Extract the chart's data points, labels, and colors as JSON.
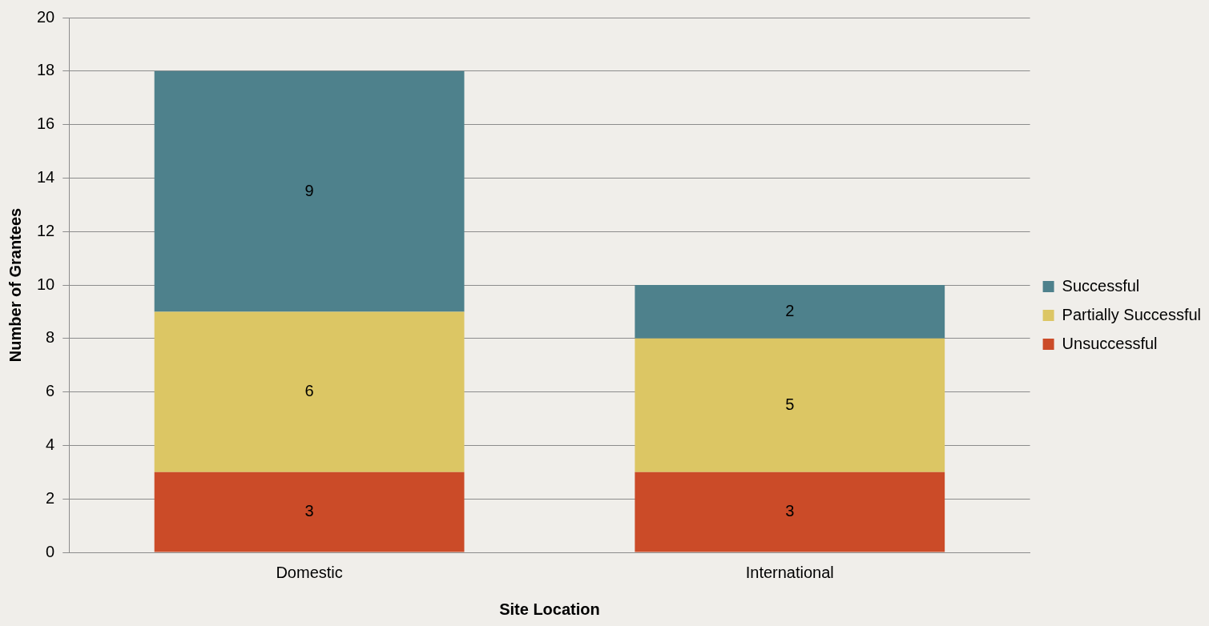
{
  "chart_data": {
    "type": "bar",
    "xlabel": "Site Location",
    "ylabel": "Number of Grantees",
    "categories": [
      "Domestic",
      "International"
    ],
    "series": [
      {
        "name": "Unsuccessful",
        "color": "#cb4b28",
        "values": [
          3,
          3
        ]
      },
      {
        "name": "Partially Successful",
        "color": "#dcc664",
        "values": [
          6,
          5
        ]
      },
      {
        "name": "Successful",
        "color": "#4e818c",
        "values": [
          9,
          2
        ]
      }
    ],
    "stacked": true,
    "ylim": [
      0,
      20
    ],
    "yticks": [
      0,
      2,
      4,
      6,
      8,
      10,
      12,
      14,
      16,
      18,
      20
    ],
    "grid": "y",
    "legend": "right",
    "data_labels": true
  }
}
